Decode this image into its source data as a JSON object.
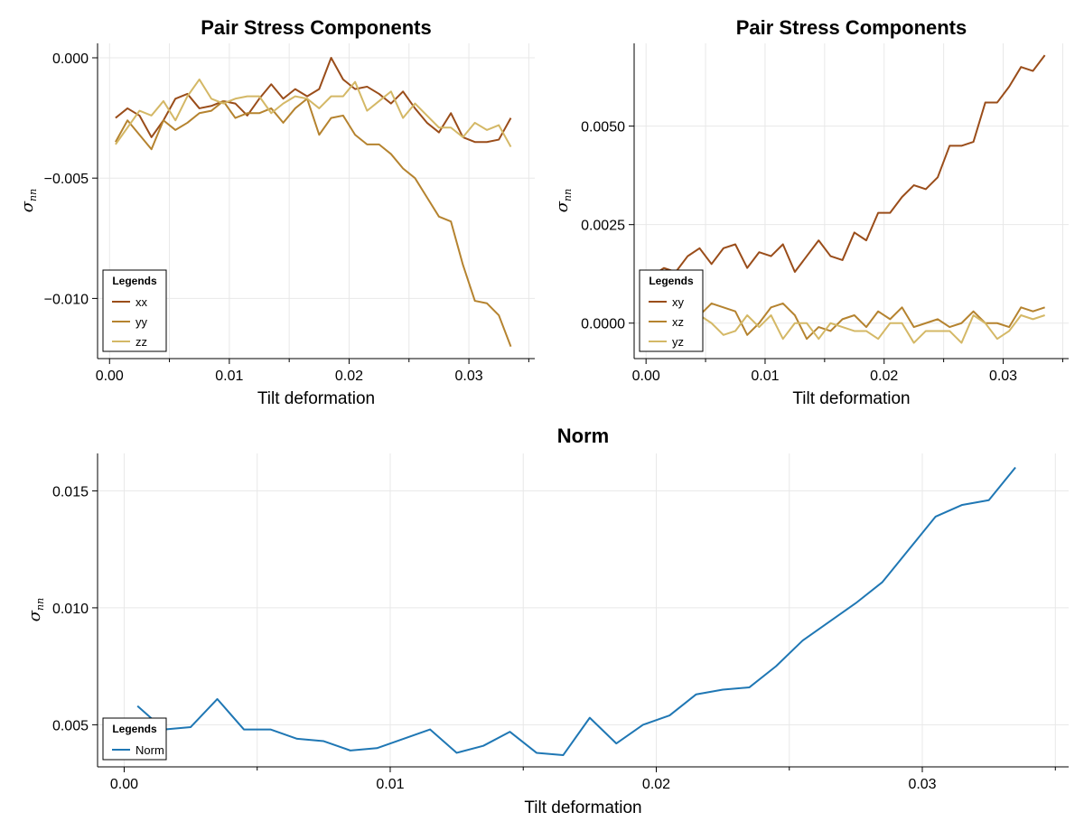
{
  "colors": {
    "xx": "#9a4d1a",
    "yy": "#b5832f",
    "zz": "#d4b866",
    "norm": "#1f77b4",
    "grid": "#e8e8e8",
    "axis": "#000000"
  },
  "chart_data": [
    {
      "type": "line",
      "title": "Pair Stress Components",
      "xlabel": "Tilt deformation",
      "ylabel": "σnn",
      "ylabel_main": "σ",
      "ylabel_sub": "nn",
      "xlim": [
        -0.001,
        0.0355
      ],
      "ylim": [
        -0.0125,
        0.0006
      ],
      "xticks": [
        0.0,
        0.01,
        0.02,
        0.03
      ],
      "xtick_labels": [
        "0.00",
        "0.01",
        "0.02",
        "0.03"
      ],
      "yticks": [
        0.0,
        -0.005,
        -0.01
      ],
      "ytick_labels": [
        "0.000",
        "−0.005",
        "−0.010"
      ],
      "grid": true,
      "legend": {
        "title": "Legends",
        "placement": "bottom-left"
      },
      "x": [
        0.0005,
        0.0015,
        0.0025,
        0.0035,
        0.0045,
        0.0055,
        0.0065,
        0.0075,
        0.0085,
        0.0095,
        0.0105,
        0.0115,
        0.0125,
        0.0135,
        0.0145,
        0.0155,
        0.0165,
        0.0175,
        0.0185,
        0.0195,
        0.0205,
        0.0215,
        0.0225,
        0.0235,
        0.0245,
        0.0255,
        0.0265,
        0.0275,
        0.0285,
        0.0295,
        0.0305,
        0.0315,
        0.0325,
        0.0335
      ],
      "series": [
        {
          "name": "xx",
          "color_key": "xx",
          "values": [
            -0.0025,
            -0.0021,
            -0.0024,
            -0.0033,
            -0.0026,
            -0.0017,
            -0.0015,
            -0.0021,
            -0.002,
            -0.0018,
            -0.0019,
            -0.0024,
            -0.0017,
            -0.0011,
            -0.0017,
            -0.0013,
            -0.0016,
            -0.0013,
            0.0,
            -0.0009,
            -0.0013,
            -0.0012,
            -0.0015,
            -0.0019,
            -0.0014,
            -0.0021,
            -0.0027,
            -0.0031,
            -0.0023,
            -0.0033,
            -0.0035,
            -0.0035,
            -0.0034,
            -0.0025
          ]
        },
        {
          "name": "yy",
          "color_key": "yy",
          "values": [
            -0.0035,
            -0.0026,
            -0.0032,
            -0.0038,
            -0.0026,
            -0.003,
            -0.0027,
            -0.0023,
            -0.0022,
            -0.0018,
            -0.0025,
            -0.0023,
            -0.0023,
            -0.0021,
            -0.0027,
            -0.0021,
            -0.0017,
            -0.0032,
            -0.0025,
            -0.0024,
            -0.0032,
            -0.0036,
            -0.0036,
            -0.004,
            -0.0046,
            -0.005,
            -0.0058,
            -0.0066,
            -0.0068,
            -0.0086,
            -0.0101,
            -0.0102,
            -0.0107,
            -0.012
          ]
        },
        {
          "name": "zz",
          "color_key": "zz",
          "values": [
            -0.0036,
            -0.0029,
            -0.0022,
            -0.0024,
            -0.0018,
            -0.0026,
            -0.0016,
            -0.0009,
            -0.0017,
            -0.0019,
            -0.0017,
            -0.0016,
            -0.0016,
            -0.0023,
            -0.0019,
            -0.0016,
            -0.0017,
            -0.0021,
            -0.0016,
            -0.0016,
            -0.001,
            -0.0022,
            -0.0018,
            -0.0014,
            -0.0025,
            -0.0019,
            -0.0024,
            -0.0029,
            -0.0029,
            -0.0033,
            -0.0027,
            -0.003,
            -0.0028,
            -0.0037
          ]
        }
      ]
    },
    {
      "type": "line",
      "title": "Pair Stress Components",
      "xlabel": "Tilt deformation",
      "ylabel": "σnn",
      "ylabel_main": "σ",
      "ylabel_sub": "nn",
      "xlim": [
        -0.001,
        0.0355
      ],
      "ylim": [
        -0.0009,
        0.0071
      ],
      "xticks": [
        0.0,
        0.01,
        0.02,
        0.03
      ],
      "xtick_labels": [
        "0.00",
        "0.01",
        "0.02",
        "0.03"
      ],
      "yticks": [
        0.005,
        0.0025,
        0.0
      ],
      "ytick_labels": [
        "0.0050",
        "0.0025",
        "0.0000"
      ],
      "grid": true,
      "legend": {
        "title": "Legends",
        "placement": "bottom-left"
      },
      "x": [
        0.0005,
        0.0015,
        0.0025,
        0.0035,
        0.0045,
        0.0055,
        0.0065,
        0.0075,
        0.0085,
        0.0095,
        0.0105,
        0.0115,
        0.0125,
        0.0135,
        0.0145,
        0.0155,
        0.0165,
        0.0175,
        0.0185,
        0.0195,
        0.0205,
        0.0215,
        0.0225,
        0.0235,
        0.0245,
        0.0255,
        0.0265,
        0.0275,
        0.0285,
        0.0295,
        0.0305,
        0.0315,
        0.0325,
        0.0335
      ],
      "series": [
        {
          "name": "xy",
          "color_key": "xy",
          "values": [
            0.0012,
            0.0014,
            0.0013,
            0.0017,
            0.0019,
            0.0015,
            0.0019,
            0.002,
            0.0014,
            0.0018,
            0.0017,
            0.002,
            0.0013,
            0.0017,
            0.0021,
            0.0017,
            0.0016,
            0.0023,
            0.0021,
            0.0028,
            0.0028,
            0.0032,
            0.0035,
            0.0034,
            0.0037,
            0.0045,
            0.0045,
            0.0046,
            0.0056,
            0.0056,
            0.006,
            0.0065,
            0.0064,
            0.0068
          ]
        },
        {
          "name": "xz",
          "color_key": "xz",
          "values": [
            0.0001,
            -0.0001,
            0.0,
            -0.0001,
            0.0002,
            0.0005,
            0.0004,
            0.0003,
            -0.0003,
            0.0,
            0.0004,
            0.0005,
            0.0002,
            -0.0004,
            -0.0001,
            -0.0002,
            0.0001,
            0.0002,
            -0.0001,
            0.0003,
            0.0001,
            0.0004,
            -0.0001,
            0.0,
            0.0001,
            -0.0001,
            0.0,
            0.0003,
            0.0,
            0.0,
            -0.0001,
            0.0004,
            0.0003,
            0.0004
          ]
        },
        {
          "name": "yz",
          "color_key": "yz",
          "values": [
            0.0,
            0.0001,
            -0.0001,
            -0.0001,
            0.0002,
            0.0,
            -0.0003,
            -0.0002,
            0.0002,
            -0.0001,
            0.0002,
            -0.0004,
            0.0,
            0.0,
            -0.0004,
            0.0,
            -0.0001,
            -0.0002,
            -0.0002,
            -0.0004,
            0.0,
            0.0,
            -0.0005,
            -0.0002,
            -0.0002,
            -0.0002,
            -0.0005,
            0.0002,
            0.0,
            -0.0004,
            -0.0002,
            0.0002,
            0.0001,
            0.0002
          ]
        }
      ]
    },
    {
      "type": "line",
      "title": "Norm",
      "xlabel": "Tilt deformation",
      "ylabel": "σnn",
      "ylabel_main": "σ",
      "ylabel_sub": "nn",
      "xlim": [
        -0.001,
        0.0355
      ],
      "ylim": [
        0.0032,
        0.0166
      ],
      "xticks": [
        0.0,
        0.01,
        0.02,
        0.03
      ],
      "xtick_labels": [
        "0.00",
        "0.01",
        "0.02",
        "0.03"
      ],
      "yticks": [
        0.015,
        0.01,
        0.005
      ],
      "ytick_labels": [
        "0.015",
        "0.010",
        "0.005"
      ],
      "grid": true,
      "legend": {
        "title": "Legends",
        "placement": "bottom-left"
      },
      "x": [
        0.0005,
        0.0015,
        0.0025,
        0.0035,
        0.0045,
        0.0055,
        0.0065,
        0.0075,
        0.0085,
        0.0095,
        0.0105,
        0.0115,
        0.0125,
        0.0135,
        0.0145,
        0.0155,
        0.0165,
        0.0175,
        0.0185,
        0.0195,
        0.0205,
        0.0215,
        0.0225,
        0.0235,
        0.0245,
        0.0255,
        0.0265,
        0.0275,
        0.0285,
        0.0295,
        0.0305,
        0.0315,
        0.0325,
        0.0335
      ],
      "series": [
        {
          "name": "Norm",
          "color_key": "norm",
          "values": [
            0.0058,
            0.0048,
            0.0049,
            0.0061,
            0.0048,
            0.0048,
            0.0044,
            0.0043,
            0.0039,
            0.004,
            0.0044,
            0.0048,
            0.0038,
            0.0041,
            0.0047,
            0.0038,
            0.0037,
            0.0053,
            0.0042,
            0.005,
            0.0054,
            0.0063,
            0.0065,
            0.0066,
            0.0075,
            0.0086,
            0.0094,
            0.0102,
            0.0111,
            0.0125,
            0.0139,
            0.0144,
            0.0146,
            0.016
          ]
        }
      ]
    }
  ]
}
